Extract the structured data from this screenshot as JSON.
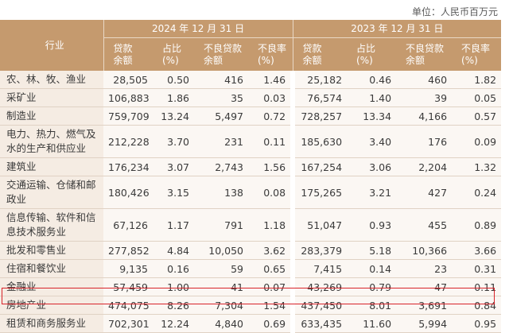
{
  "unit": "单位：人民币百万元",
  "header": {
    "industry": "行业",
    "period_2024": "2024 年 12 月 31 日",
    "period_2023": "2023 年 12 月 31 日",
    "columns": [
      "贷款余额",
      "占比(%)",
      "不良贷款余额",
      "不良率(%)"
    ]
  },
  "rows": [
    {
      "name": "农、林、牧、渔业",
      "v": [
        "28,505",
        "0.50",
        "416",
        "1.46",
        "25,182",
        "0.46",
        "460",
        "1.82"
      ]
    },
    {
      "name": "采矿业",
      "v": [
        "106,883",
        "1.86",
        "35",
        "0.03",
        "76,574",
        "1.40",
        "39",
        "0.05"
      ]
    },
    {
      "name": "制造业",
      "v": [
        "759,709",
        "13.24",
        "5,497",
        "0.72",
        "728,257",
        "13.34",
        "4,166",
        "0.57"
      ]
    },
    {
      "name": "电力、热力、燃气及水的生产和供应业",
      "v": [
        "212,228",
        "3.70",
        "231",
        "0.11",
        "185,630",
        "3.40",
        "176",
        "0.09"
      ]
    },
    {
      "name": "建筑业",
      "v": [
        "176,234",
        "3.07",
        "2,743",
        "1.56",
        "167,254",
        "3.06",
        "2,204",
        "1.32"
      ]
    },
    {
      "name": "交通运输、仓储和邮政业",
      "v": [
        "180,426",
        "3.15",
        "138",
        "0.08",
        "175,265",
        "3.21",
        "427",
        "0.24"
      ]
    },
    {
      "name": "信息传输、软件和信息技术服务业",
      "v": [
        "67,126",
        "1.17",
        "791",
        "1.18",
        "51,047",
        "0.93",
        "455",
        "0.89"
      ]
    },
    {
      "name": "批发和零售业",
      "v": [
        "277,852",
        "4.84",
        "10,050",
        "3.62",
        "283,379",
        "5.18",
        "10,366",
        "3.66"
      ]
    },
    {
      "name": "住宿和餐饮业",
      "v": [
        "9,135",
        "0.16",
        "59",
        "0.65",
        "7,415",
        "0.14",
        "23",
        "0.31"
      ]
    },
    {
      "name": "金融业",
      "v": [
        "57,459",
        "1.00",
        "41",
        "0.07",
        "43,269",
        "0.79",
        "47",
        "0.11"
      ]
    },
    {
      "name": "房地产业",
      "v": [
        "474,075",
        "8.26",
        "7,304",
        "1.54",
        "437,450",
        "8.01",
        "3,691",
        "0.84"
      ]
    },
    {
      "name": "租赁和商务服务业",
      "v": [
        "702,301",
        "12.24",
        "4,840",
        "0.69",
        "633,435",
        "11.60",
        "5,994",
        "0.95"
      ]
    }
  ],
  "highlight_color": "#d8232a"
}
